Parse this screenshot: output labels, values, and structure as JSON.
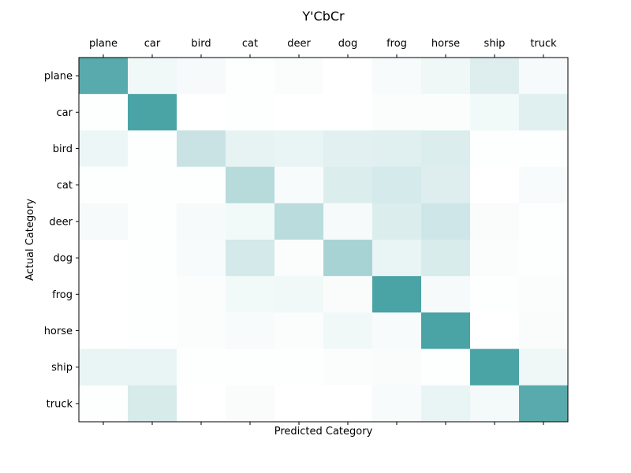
{
  "chart_data": {
    "type": "heatmap",
    "title": "Y'CbCr",
    "xlabel": "Predicted Category",
    "ylabel": "Actual Category",
    "x_categories": [
      "plane",
      "car",
      "bird",
      "cat",
      "deer",
      "dog",
      "frog",
      "horse",
      "ship",
      "truck"
    ],
    "y_categories": [
      "plane",
      "car",
      "bird",
      "cat",
      "deer",
      "dog",
      "frog",
      "horse",
      "ship",
      "truck"
    ],
    "x_tick_position": "top",
    "colormap": {
      "low": "#ffffff",
      "high": "#4aa3a5"
    },
    "grid": false,
    "values": [
      [
        0.92,
        0.08,
        0.05,
        0.01,
        0.02,
        0.0,
        0.04,
        0.09,
        0.18,
        0.05
      ],
      [
        0.01,
        1.0,
        0.0,
        0.01,
        0.0,
        0.0,
        0.02,
        0.02,
        0.07,
        0.17
      ],
      [
        0.1,
        0.01,
        0.3,
        0.13,
        0.12,
        0.16,
        0.17,
        0.2,
        0.01,
        0.01
      ],
      [
        0.01,
        0.01,
        0.01,
        0.4,
        0.04,
        0.2,
        0.23,
        0.18,
        0.0,
        0.04
      ],
      [
        0.05,
        0.01,
        0.05,
        0.07,
        0.38,
        0.05,
        0.2,
        0.27,
        0.03,
        0.01
      ],
      [
        0.0,
        0.01,
        0.04,
        0.24,
        0.02,
        0.48,
        0.12,
        0.21,
        0.02,
        0.01
      ],
      [
        0.0,
        0.01,
        0.02,
        0.07,
        0.08,
        0.03,
        1.0,
        0.05,
        0.01,
        0.02
      ],
      [
        0.0,
        0.01,
        0.02,
        0.04,
        0.02,
        0.08,
        0.04,
        1.0,
        0.0,
        0.03
      ],
      [
        0.12,
        0.12,
        0.01,
        0.01,
        0.01,
        0.02,
        0.03,
        0.01,
        1.0,
        0.09
      ],
      [
        0.01,
        0.22,
        0.0,
        0.03,
        0.0,
        0.0,
        0.04,
        0.12,
        0.06,
        0.92
      ]
    ]
  }
}
